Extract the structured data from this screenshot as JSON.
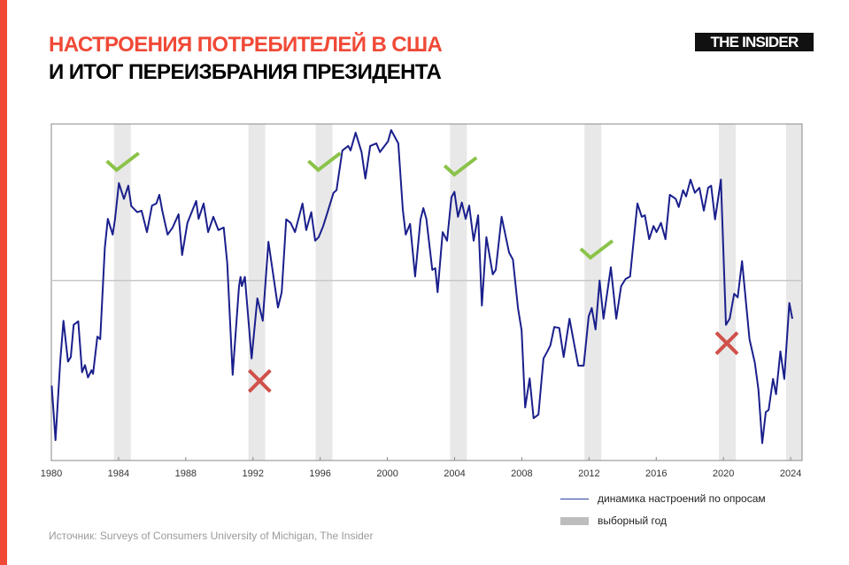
{
  "header": {
    "title_line1": "НАСТРОЕНИЯ ПОТРЕБИТЕЛЕЙ В США",
    "title_line2": "И ИТОГ ПЕРЕИЗБРАНИЯ ПРЕЗИДЕНТА",
    "logo": "THE INSIDER"
  },
  "legend": {
    "line_label": "динамика настроений по опросам",
    "band_label": "выборный год"
  },
  "source": "Источник: Surveys of Consumers University of  Michigan, The Insider",
  "colors": {
    "accent": "#f04a37",
    "line": "#1a1f8c",
    "band": "#e8e8e8",
    "check": "#8bc34a",
    "cross": "#d0504a",
    "reference": "#c8c8c8"
  },
  "chart_data": {
    "type": "line",
    "title": "",
    "xlabel": "",
    "ylabel": "",
    "xlim": [
      1980,
      2024.68
    ],
    "ylim": [
      47,
      113
    ],
    "y_axis_labels_shown": false,
    "grid": false,
    "reference_line": 82.3,
    "x_ticks": [
      "1980",
      "1984",
      "1988",
      "1992",
      "1996",
      "2000",
      "2004",
      "2008",
      "2012",
      "2016",
      "2020",
      "2024"
    ],
    "election_years": [
      1984,
      1992,
      1996,
      2004,
      2012,
      2020,
      2024
    ],
    "annotations": [
      {
        "type": "check",
        "year": 1984.2,
        "level": 105.2
      },
      {
        "type": "cross",
        "year": 1992.4,
        "level": 62.6
      },
      {
        "type": "check",
        "year": 1996.2,
        "level": 105.2
      },
      {
        "type": "check",
        "year": 2004.3,
        "level": 104.3
      },
      {
        "type": "check",
        "year": 2012.4,
        "level": 88.0
      },
      {
        "type": "cross",
        "year": 2020.2,
        "level": 70.0
      }
    ],
    "series": [
      {
        "points": [
          [
            1980.02,
            61.7
          ],
          [
            1980.25,
            51.0
          ],
          [
            1980.53,
            66.6
          ],
          [
            1980.72,
            74.4
          ],
          [
            1980.99,
            66.4
          ],
          [
            1981.16,
            67.3
          ],
          [
            1981.33,
            73.6
          ],
          [
            1981.6,
            74.3
          ],
          [
            1981.83,
            64.3
          ],
          [
            1982.0,
            65.7
          ],
          [
            1982.18,
            63.3
          ],
          [
            1982.39,
            64.7
          ],
          [
            1982.48,
            64.0
          ],
          [
            1982.74,
            71.3
          ],
          [
            1982.91,
            70.8
          ],
          [
            1983.18,
            88.7
          ],
          [
            1983.36,
            94.4
          ],
          [
            1983.65,
            91.3
          ],
          [
            1983.79,
            94.3
          ],
          [
            1984.02,
            101.4
          ],
          [
            1984.32,
            98.3
          ],
          [
            1984.58,
            100.9
          ],
          [
            1984.76,
            96.9
          ],
          [
            1985.11,
            95.7
          ],
          [
            1985.37,
            96.0
          ],
          [
            1985.69,
            91.8
          ],
          [
            1985.99,
            97.0
          ],
          [
            1986.25,
            97.4
          ],
          [
            1986.43,
            99.1
          ],
          [
            1986.6,
            96.0
          ],
          [
            1986.92,
            91.3
          ],
          [
            1987.22,
            92.7
          ],
          [
            1987.57,
            95.3
          ],
          [
            1987.78,
            87.3
          ],
          [
            1988.1,
            93.6
          ],
          [
            1988.62,
            97.9
          ],
          [
            1988.76,
            94.4
          ],
          [
            1989.06,
            97.4
          ],
          [
            1989.33,
            91.8
          ],
          [
            1989.64,
            94.8
          ],
          [
            1989.94,
            92.2
          ],
          [
            1990.26,
            92.7
          ],
          [
            1990.47,
            85.7
          ],
          [
            1990.79,
            63.8
          ],
          [
            1991.17,
            81.2
          ],
          [
            1991.26,
            83.0
          ],
          [
            1991.34,
            81.2
          ],
          [
            1991.52,
            83.0
          ],
          [
            1991.92,
            67.0
          ],
          [
            1992.26,
            78.8
          ],
          [
            1992.58,
            74.4
          ],
          [
            1992.92,
            89.9
          ],
          [
            1993.49,
            77.0
          ],
          [
            1993.71,
            80.0
          ],
          [
            1993.98,
            94.3
          ],
          [
            1994.24,
            93.6
          ],
          [
            1994.5,
            91.8
          ],
          [
            1994.95,
            97.4
          ],
          [
            1995.17,
            92.2
          ],
          [
            1995.47,
            95.7
          ],
          [
            1995.7,
            90.1
          ],
          [
            1995.91,
            90.8
          ],
          [
            1996.18,
            93.0
          ],
          [
            1996.44,
            95.7
          ],
          [
            1996.79,
            99.5
          ],
          [
            1996.97,
            100.0
          ],
          [
            1997.32,
            107.8
          ],
          [
            1997.67,
            108.7
          ],
          [
            1997.81,
            107.8
          ],
          [
            1998.11,
            111.3
          ],
          [
            1998.46,
            107.5
          ],
          [
            1998.69,
            102.3
          ],
          [
            1998.98,
            108.7
          ],
          [
            1999.34,
            109.2
          ],
          [
            1999.56,
            107.5
          ],
          [
            2000.04,
            109.6
          ],
          [
            2000.22,
            111.8
          ],
          [
            2000.65,
            109.2
          ],
          [
            2000.92,
            96.2
          ],
          [
            2001.09,
            91.3
          ],
          [
            2001.35,
            93.4
          ],
          [
            2001.65,
            83.1
          ],
          [
            2001.97,
            94.3
          ],
          [
            2002.14,
            96.5
          ],
          [
            2002.32,
            94.4
          ],
          [
            2002.67,
            84.4
          ],
          [
            2002.85,
            84.7
          ],
          [
            2002.99,
            80.0
          ],
          [
            2003.29,
            91.8
          ],
          [
            2003.55,
            90.1
          ],
          [
            2003.81,
            98.6
          ],
          [
            2003.99,
            99.7
          ],
          [
            2004.2,
            94.8
          ],
          [
            2004.43,
            97.6
          ],
          [
            2004.66,
            94.4
          ],
          [
            2004.87,
            97.0
          ],
          [
            2005.13,
            90.1
          ],
          [
            2005.4,
            95.1
          ],
          [
            2005.62,
            77.4
          ],
          [
            2005.89,
            90.8
          ],
          [
            2006.27,
            83.5
          ],
          [
            2006.45,
            84.4
          ],
          [
            2006.8,
            94.8
          ],
          [
            2007.24,
            87.8
          ],
          [
            2007.47,
            86.4
          ],
          [
            2007.77,
            76.9
          ],
          [
            2007.99,
            72.5
          ],
          [
            2008.2,
            57.4
          ],
          [
            2008.47,
            63.1
          ],
          [
            2008.7,
            55.3
          ],
          [
            2008.99,
            56.0
          ],
          [
            2009.29,
            67.0
          ],
          [
            2009.52,
            68.4
          ],
          [
            2009.7,
            69.6
          ],
          [
            2009.93,
            73.2
          ],
          [
            2010.23,
            73.0
          ],
          [
            2010.49,
            67.3
          ],
          [
            2010.84,
            74.8
          ],
          [
            2011.1,
            70.1
          ],
          [
            2011.36,
            65.6
          ],
          [
            2011.68,
            65.6
          ],
          [
            2011.98,
            75.3
          ],
          [
            2012.16,
            76.9
          ],
          [
            2012.39,
            72.7
          ],
          [
            2012.63,
            82.3
          ],
          [
            2012.86,
            74.8
          ],
          [
            2013.3,
            84.9
          ],
          [
            2013.62,
            74.8
          ],
          [
            2013.91,
            81.2
          ],
          [
            2014.18,
            82.6
          ],
          [
            2014.44,
            83.1
          ],
          [
            2014.88,
            97.4
          ],
          [
            2015.14,
            94.8
          ],
          [
            2015.32,
            95.1
          ],
          [
            2015.58,
            90.4
          ],
          [
            2015.84,
            93.0
          ],
          [
            2016.02,
            91.8
          ],
          [
            2016.28,
            93.6
          ],
          [
            2016.55,
            90.4
          ],
          [
            2016.81,
            99.1
          ],
          [
            2017.16,
            98.3
          ],
          [
            2017.34,
            96.7
          ],
          [
            2017.6,
            100.0
          ],
          [
            2017.78,
            98.8
          ],
          [
            2018.04,
            102.1
          ],
          [
            2018.3,
            99.5
          ],
          [
            2018.57,
            100.5
          ],
          [
            2018.83,
            96.0
          ],
          [
            2019.09,
            100.5
          ],
          [
            2019.27,
            100.9
          ],
          [
            2019.5,
            94.3
          ],
          [
            2019.85,
            102.1
          ],
          [
            2020.15,
            73.6
          ],
          [
            2020.37,
            74.8
          ],
          [
            2020.64,
            79.7
          ],
          [
            2020.85,
            79.0
          ],
          [
            2021.11,
            86.1
          ],
          [
            2021.55,
            70.8
          ],
          [
            2021.87,
            66.1
          ],
          [
            2022.08,
            60.9
          ],
          [
            2022.31,
            50.4
          ],
          [
            2022.52,
            56.5
          ],
          [
            2022.69,
            56.9
          ],
          [
            2022.95,
            63.0
          ],
          [
            2023.13,
            60.0
          ],
          [
            2023.39,
            68.4
          ],
          [
            2023.62,
            63.0
          ],
          [
            2023.92,
            77.9
          ],
          [
            2024.1,
            74.8
          ]
        ]
      }
    ]
  }
}
